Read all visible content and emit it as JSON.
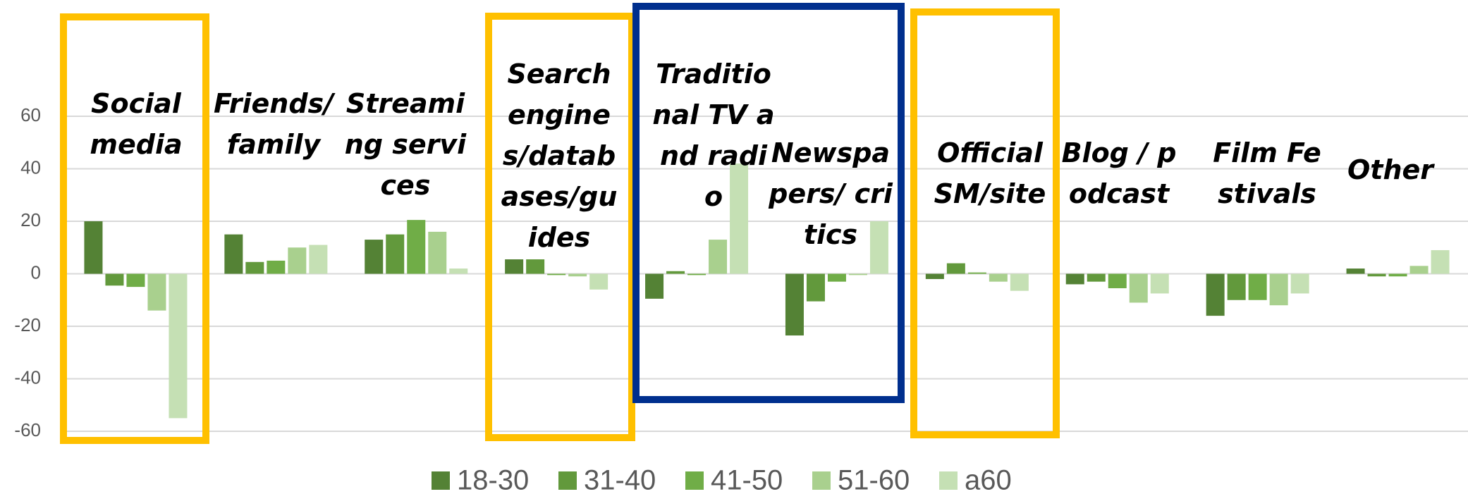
{
  "chart_data": {
    "type": "bar",
    "categories": [
      "Social media",
      "Friends/family",
      "Streaming services",
      "Search engines/databases/guides",
      "Traditional TV and radio",
      "Newspapers/ critics",
      "Official SM/site",
      "Blog / podcast",
      "Film Festivals",
      "Other"
    ],
    "series": [
      {
        "name": "18-30",
        "color": "#548235",
        "values": [
          20,
          15,
          13,
          5.5,
          -9.5,
          -23.5,
          -2,
          -4,
          -16,
          2
        ]
      },
      {
        "name": "31-40",
        "color": "#62993c",
        "values": [
          -4.5,
          4.5,
          15,
          5.5,
          1,
          -10.5,
          4,
          -3,
          -10,
          -1
        ]
      },
      {
        "name": "41-50",
        "color": "#70ad47",
        "values": [
          -5,
          5,
          20.5,
          -0.5,
          -0.5,
          -3,
          0.5,
          -5.5,
          -10,
          -1
        ]
      },
      {
        "name": "51-60",
        "color": "#a9d08e",
        "values": [
          -14,
          10,
          16,
          -1,
          13,
          -0.5,
          -3,
          -11,
          -12,
          3
        ]
      },
      {
        "name": "a60",
        "color": "#c5e0b4",
        "values": [
          -55,
          11,
          2,
          -6,
          42,
          20,
          -6.5,
          -7.5,
          -7.5,
          9
        ]
      }
    ],
    "ylim": [
      -60,
      60
    ],
    "yticks": [
      -60,
      -40,
      -20,
      0,
      20,
      40,
      60
    ],
    "grid": true,
    "legend": "bottom"
  }
}
